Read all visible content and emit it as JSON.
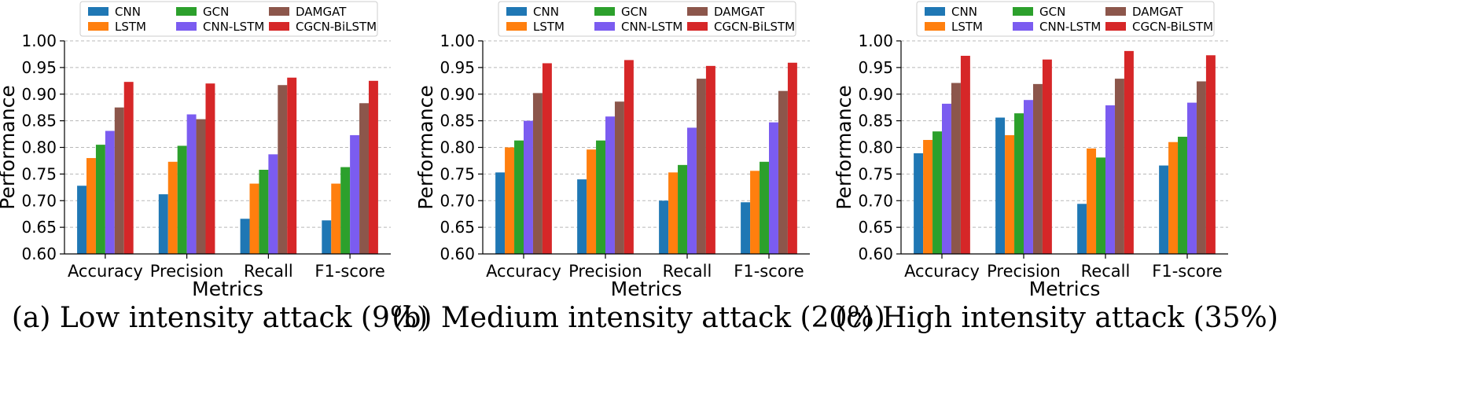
{
  "chart_data": [
    {
      "type": "bar",
      "caption": "(a) Low intensity attack (9%)",
      "xlabel": "Metrics",
      "ylabel": "Performance",
      "ylim": [
        0.6,
        1.0
      ],
      "yticks": [
        "0.60",
        "0.65",
        "0.70",
        "0.75",
        "0.80",
        "0.85",
        "0.90",
        "0.95",
        "1.00"
      ],
      "grid": true,
      "legend_position": "top",
      "categories": [
        "Accuracy",
        "Precision",
        "Recall",
        "F1-score"
      ],
      "series": [
        {
          "name": "CNN",
          "color": "#1f77b4",
          "values": [
            0.728,
            0.712,
            0.666,
            0.663
          ]
        },
        {
          "name": "LSTM",
          "color": "#ff7f0e",
          "values": [
            0.78,
            0.773,
            0.732,
            0.732
          ]
        },
        {
          "name": "GCN",
          "color": "#2ca02c",
          "values": [
            0.805,
            0.803,
            0.758,
            0.763
          ]
        },
        {
          "name": "CNN-LSTM",
          "color": "#7b5cf0",
          "values": [
            0.831,
            0.862,
            0.787,
            0.823
          ]
        },
        {
          "name": "DAMGAT",
          "color": "#8c564b",
          "values": [
            0.875,
            0.853,
            0.917,
            0.883
          ]
        },
        {
          "name": "CGCN-BiLSTM",
          "color": "#d62728",
          "values": [
            0.923,
            0.92,
            0.931,
            0.925
          ]
        }
      ]
    },
    {
      "type": "bar",
      "caption": "(b) Medium intensity attack (20%)",
      "xlabel": "Metrics",
      "ylabel": "Performance",
      "ylim": [
        0.6,
        1.0
      ],
      "yticks": [
        "0.60",
        "0.65",
        "0.70",
        "0.75",
        "0.80",
        "0.85",
        "0.90",
        "0.95",
        "1.00"
      ],
      "grid": true,
      "legend_position": "top",
      "categories": [
        "Accuracy",
        "Precision",
        "Recall",
        "F1-score"
      ],
      "series": [
        {
          "name": "CNN",
          "color": "#1f77b4",
          "values": [
            0.753,
            0.74,
            0.7,
            0.697
          ]
        },
        {
          "name": "LSTM",
          "color": "#ff7f0e",
          "values": [
            0.8,
            0.796,
            0.753,
            0.756
          ]
        },
        {
          "name": "GCN",
          "color": "#2ca02c",
          "values": [
            0.813,
            0.813,
            0.767,
            0.773
          ]
        },
        {
          "name": "CNN-LSTM",
          "color": "#7b5cf0",
          "values": [
            0.85,
            0.858,
            0.837,
            0.847
          ]
        },
        {
          "name": "DAMGAT",
          "color": "#8c564b",
          "values": [
            0.902,
            0.886,
            0.929,
            0.906
          ]
        },
        {
          "name": "CGCN-BiLSTM",
          "color": "#d62728",
          "values": [
            0.958,
            0.964,
            0.953,
            0.959
          ]
        }
      ]
    },
    {
      "type": "bar",
      "caption": "(c) High intensity attack (35%)",
      "xlabel": "Metrics",
      "ylabel": "Performance",
      "ylim": [
        0.6,
        1.0
      ],
      "yticks": [
        "0.60",
        "0.65",
        "0.70",
        "0.75",
        "0.80",
        "0.85",
        "0.90",
        "0.95",
        "1.00"
      ],
      "grid": true,
      "legend_position": "top",
      "categories": [
        "Accuracy",
        "Precision",
        "Recall",
        "F1-score"
      ],
      "series": [
        {
          "name": "CNN",
          "color": "#1f77b4",
          "values": [
            0.789,
            0.856,
            0.694,
            0.766
          ]
        },
        {
          "name": "LSTM",
          "color": "#ff7f0e",
          "values": [
            0.814,
            0.823,
            0.798,
            0.81
          ]
        },
        {
          "name": "GCN",
          "color": "#2ca02c",
          "values": [
            0.83,
            0.864,
            0.781,
            0.82
          ]
        },
        {
          "name": "CNN-LSTM",
          "color": "#7b5cf0",
          "values": [
            0.882,
            0.889,
            0.879,
            0.884
          ]
        },
        {
          "name": "DAMGAT",
          "color": "#8c564b",
          "values": [
            0.921,
            0.919,
            0.929,
            0.924
          ]
        },
        {
          "name": "CGCN-BiLSTM",
          "color": "#d62728",
          "values": [
            0.972,
            0.965,
            0.981,
            0.973
          ]
        }
      ]
    }
  ]
}
